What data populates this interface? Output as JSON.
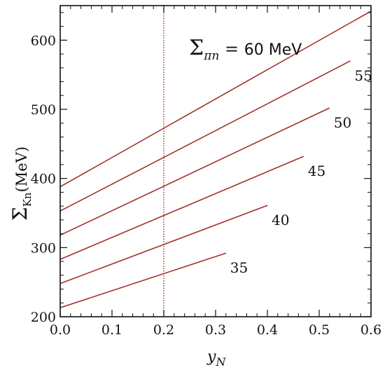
{
  "chart_data": {
    "type": "line",
    "title": "",
    "xlabel": "y",
    "xlabel_sub": "N",
    "ylabel": "Σ",
    "ylabel_sub": "Kn",
    "ylabel_unit": "(MeV)",
    "xlim": [
      0,
      0.6
    ],
    "ylim": [
      200,
      650
    ],
    "xticks": [
      0.0,
      0.1,
      0.2,
      0.3,
      0.4,
      0.5,
      0.6
    ],
    "xtick_labels": [
      "0.0",
      "0.1",
      "0.2",
      "0.3",
      "0.4",
      "0.5",
      "0.6"
    ],
    "yticks": [
      200,
      300,
      400,
      500,
      600
    ],
    "ytick_labels": [
      "200",
      "300",
      "400",
      "500",
      "600"
    ],
    "grid": false,
    "line_color": "#a0322a",
    "vline": {
      "x": 0.2,
      "color": "#a0322a",
      "style": "dotted"
    },
    "annotation": {
      "sigma": "Σ",
      "sub": "πn",
      "equals": " = ",
      "value": "60 MeV"
    },
    "series": [
      {
        "label": "35",
        "x": [
          0,
          0.32
        ],
        "y": [
          213,
          292
        ]
      },
      {
        "label": "40",
        "x": [
          0,
          0.4
        ],
        "y": [
          248,
          361
        ]
      },
      {
        "label": "45",
        "x": [
          0,
          0.47
        ],
        "y": [
          283,
          432
        ]
      },
      {
        "label": "50",
        "x": [
          0,
          0.52
        ],
        "y": [
          318,
          502
        ]
      },
      {
        "label": "55",
        "x": [
          0,
          0.56
        ],
        "y": [
          353,
          570
        ]
      },
      {
        "label": "60",
        "x": [
          0,
          0.6
        ],
        "y": [
          388,
          642
        ]
      }
    ]
  }
}
